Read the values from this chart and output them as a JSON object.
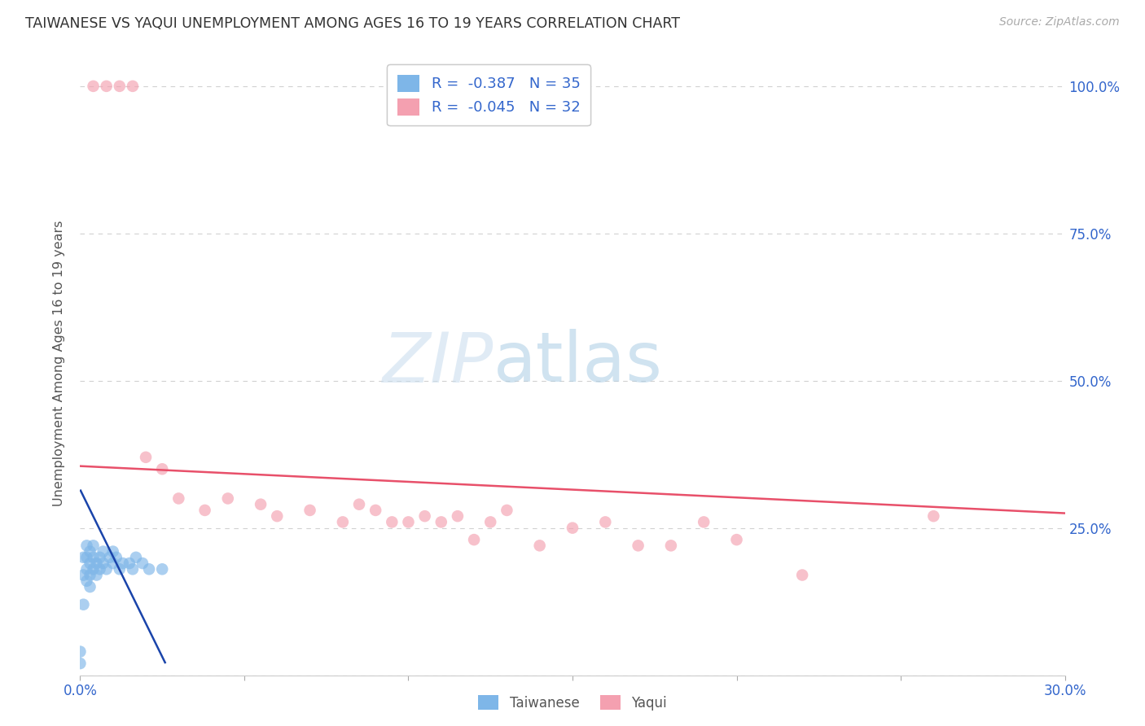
{
  "title": "TAIWANESE VS YAQUI UNEMPLOYMENT AMONG AGES 16 TO 19 YEARS CORRELATION CHART",
  "source": "Source: ZipAtlas.com",
  "ylabel": "Unemployment Among Ages 16 to 19 years",
  "xlabel_taiwanese": "Taiwanese",
  "xlabel_yaqui": "Yaqui",
  "x_min": 0.0,
  "x_max": 0.3,
  "y_min": 0.0,
  "y_max": 1.06,
  "x_ticks": [
    0.0,
    0.05,
    0.1,
    0.15,
    0.2,
    0.25,
    0.3
  ],
  "x_tick_labels": [
    "0.0%",
    "",
    "",
    "",
    "",
    "",
    "30.0%"
  ],
  "y_ticks": [
    0.0,
    0.25,
    0.5,
    0.75,
    1.0
  ],
  "y_right_labels": [
    "",
    "25.0%",
    "50.0%",
    "75.0%",
    "100.0%"
  ],
  "taiwanese_color": "#7EB6E8",
  "yaqui_color": "#F4A0B0",
  "taiwanese_line_color": "#1A44AA",
  "yaqui_line_color": "#E8506A",
  "R_taiwanese": -0.387,
  "N_taiwanese": 35,
  "R_yaqui": -0.045,
  "N_yaqui": 32,
  "blue_text_color": "#3366CC",
  "label_color": "#555555",
  "background_color": "#ffffff",
  "grid_color": "#cccccc",
  "taiwanese_scatter_x": [
    0.0,
    0.0,
    0.001,
    0.001,
    0.001,
    0.002,
    0.002,
    0.002,
    0.002,
    0.003,
    0.003,
    0.003,
    0.003,
    0.004,
    0.004,
    0.004,
    0.005,
    0.005,
    0.006,
    0.006,
    0.007,
    0.007,
    0.008,
    0.009,
    0.01,
    0.01,
    0.011,
    0.012,
    0.013,
    0.015,
    0.016,
    0.017,
    0.019,
    0.021,
    0.025
  ],
  "taiwanese_scatter_y": [
    0.04,
    0.02,
    0.2,
    0.17,
    0.12,
    0.22,
    0.2,
    0.18,
    0.16,
    0.21,
    0.19,
    0.17,
    0.15,
    0.2,
    0.18,
    0.22,
    0.19,
    0.17,
    0.2,
    0.18,
    0.21,
    0.19,
    0.18,
    0.2,
    0.19,
    0.21,
    0.2,
    0.18,
    0.19,
    0.19,
    0.18,
    0.2,
    0.19,
    0.18,
    0.18
  ],
  "yaqui_scatter_x": [
    0.004,
    0.008,
    0.012,
    0.016,
    0.02,
    0.025,
    0.03,
    0.038,
    0.045,
    0.055,
    0.06,
    0.07,
    0.08,
    0.085,
    0.09,
    0.095,
    0.1,
    0.105,
    0.11,
    0.115,
    0.12,
    0.125,
    0.13,
    0.14,
    0.15,
    0.16,
    0.17,
    0.18,
    0.19,
    0.2,
    0.22,
    0.26
  ],
  "yaqui_scatter_y": [
    1.0,
    1.0,
    1.0,
    1.0,
    0.37,
    0.35,
    0.3,
    0.28,
    0.3,
    0.29,
    0.27,
    0.28,
    0.26,
    0.29,
    0.28,
    0.26,
    0.26,
    0.27,
    0.26,
    0.27,
    0.23,
    0.26,
    0.28,
    0.22,
    0.25,
    0.26,
    0.22,
    0.22,
    0.26,
    0.23,
    0.17,
    0.27
  ],
  "taiwanese_line_x": [
    0.0,
    0.026
  ],
  "taiwanese_line_y": [
    0.315,
    0.02
  ],
  "yaqui_line_x": [
    0.0,
    0.3
  ],
  "yaqui_line_y": [
    0.355,
    0.275
  ],
  "watermark_zip_color": "#C5D8EE",
  "watermark_atlas_color": "#C5DAEC"
}
